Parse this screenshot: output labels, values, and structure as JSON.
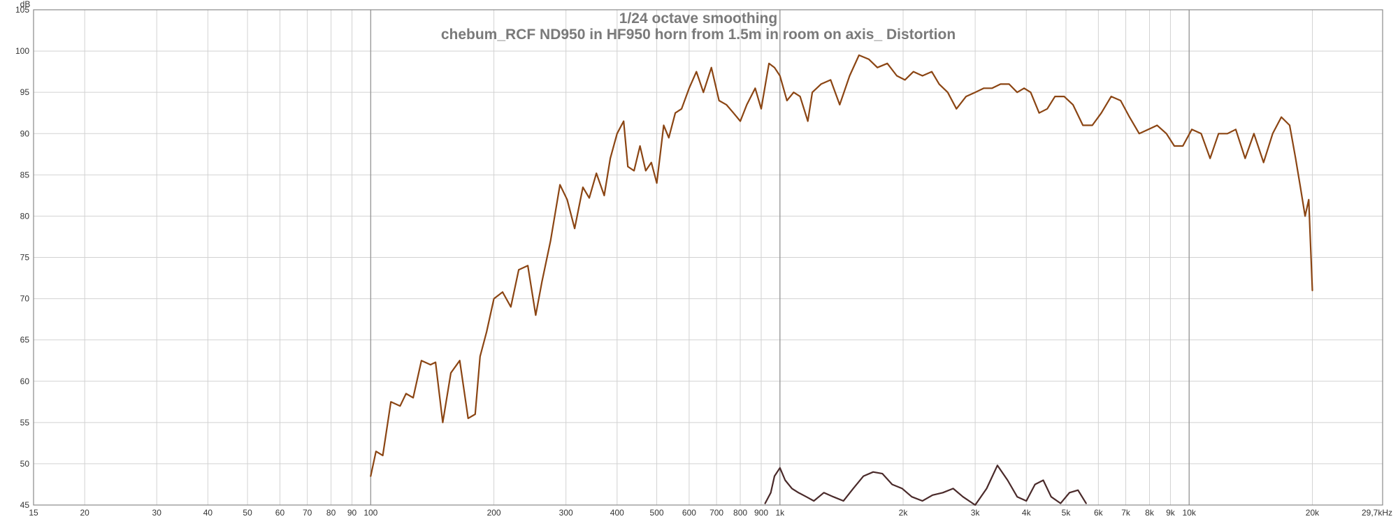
{
  "chart_data": {
    "type": "line",
    "title": "1/24 octave smoothing",
    "subtitle": "chebum_RCF ND950 in HF950 horn from 1.5m in room on axis_ Distortion",
    "ylabel": "dB",
    "xlabel_end": "29,7kHz",
    "x_scale": "log",
    "xlim": [
      15,
      29700
    ],
    "ylim": [
      45,
      105
    ],
    "grid": true,
    "y_ticks": [
      45,
      50,
      55,
      60,
      65,
      70,
      75,
      80,
      85,
      90,
      95,
      100,
      105
    ],
    "x_ticks": [
      {
        "v": 15,
        "label": "15"
      },
      {
        "v": 20,
        "label": "20"
      },
      {
        "v": 30,
        "label": "30"
      },
      {
        "v": 40,
        "label": "40"
      },
      {
        "v": 50,
        "label": "50"
      },
      {
        "v": 60,
        "label": "60"
      },
      {
        "v": 70,
        "label": "70"
      },
      {
        "v": 80,
        "label": "80"
      },
      {
        "v": 90,
        "label": "90"
      },
      {
        "v": 100,
        "label": "100"
      },
      {
        "v": 200,
        "label": "200"
      },
      {
        "v": 300,
        "label": "300"
      },
      {
        "v": 400,
        "label": "400"
      },
      {
        "v": 500,
        "label": "500"
      },
      {
        "v": 600,
        "label": "600"
      },
      {
        "v": 700,
        "label": "700"
      },
      {
        "v": 800,
        "label": "800"
      },
      {
        "v": 900,
        "label": "900"
      },
      {
        "v": 1000,
        "label": "1k"
      },
      {
        "v": 2000,
        "label": "2k"
      },
      {
        "v": 3000,
        "label": "3k"
      },
      {
        "v": 4000,
        "label": "4k"
      },
      {
        "v": 5000,
        "label": "5k"
      },
      {
        "v": 6000,
        "label": "6k"
      },
      {
        "v": 7000,
        "label": "7k"
      },
      {
        "v": 8000,
        "label": "8k"
      },
      {
        "v": 9000,
        "label": "9k"
      },
      {
        "v": 10000,
        "label": "10k"
      },
      {
        "v": 20000,
        "label": "20k"
      }
    ],
    "decade_lines": [
      100,
      1000,
      10000
    ],
    "series": [
      {
        "color": "#8b4513",
        "points": [
          [
            100,
            48.5
          ],
          [
            103,
            51.5
          ],
          [
            107,
            51
          ],
          [
            112,
            57.5
          ],
          [
            118,
            57
          ],
          [
            122,
            58.5
          ],
          [
            127,
            58
          ],
          [
            133,
            62.5
          ],
          [
            140,
            62
          ],
          [
            144,
            62.3
          ],
          [
            150,
            55
          ],
          [
            157,
            61
          ],
          [
            165,
            62.5
          ],
          [
            173,
            55.5
          ],
          [
            180,
            56
          ],
          [
            185,
            63
          ],
          [
            192,
            66
          ],
          [
            200,
            70
          ],
          [
            210,
            70.8
          ],
          [
            220,
            69
          ],
          [
            230,
            73.5
          ],
          [
            242,
            74
          ],
          [
            253,
            68
          ],
          [
            262,
            72
          ],
          [
            275,
            77
          ],
          [
            290,
            83.8
          ],
          [
            302,
            82
          ],
          [
            315,
            78.5
          ],
          [
            330,
            83.5
          ],
          [
            342,
            82.2
          ],
          [
            356,
            85.2
          ],
          [
            372,
            82.5
          ],
          [
            385,
            87
          ],
          [
            400,
            90
          ],
          [
            415,
            91.5
          ],
          [
            425,
            86
          ],
          [
            440,
            85.5
          ],
          [
            455,
            88.5
          ],
          [
            470,
            85.5
          ],
          [
            485,
            86.5
          ],
          [
            500,
            84
          ],
          [
            520,
            91
          ],
          [
            535,
            89.5
          ],
          [
            555,
            92.5
          ],
          [
            575,
            93
          ],
          [
            600,
            95.5
          ],
          [
            625,
            97.5
          ],
          [
            650,
            95
          ],
          [
            680,
            98
          ],
          [
            710,
            94
          ],
          [
            740,
            93.5
          ],
          [
            770,
            92.5
          ],
          [
            800,
            91.5
          ],
          [
            830,
            93.5
          ],
          [
            870,
            95.5
          ],
          [
            900,
            93
          ],
          [
            940,
            98.5
          ],
          [
            970,
            98
          ],
          [
            1000,
            97
          ],
          [
            1040,
            94
          ],
          [
            1080,
            95
          ],
          [
            1120,
            94.5
          ],
          [
            1170,
            91.5
          ],
          [
            1200,
            95
          ],
          [
            1260,
            96
          ],
          [
            1330,
            96.5
          ],
          [
            1400,
            93.5
          ],
          [
            1480,
            97
          ],
          [
            1560,
            99.5
          ],
          [
            1650,
            99
          ],
          [
            1730,
            98
          ],
          [
            1830,
            98.5
          ],
          [
            1930,
            97
          ],
          [
            2020,
            96.5
          ],
          [
            2120,
            97.5
          ],
          [
            2230,
            97
          ],
          [
            2350,
            97.5
          ],
          [
            2450,
            96
          ],
          [
            2570,
            95
          ],
          [
            2700,
            93
          ],
          [
            2850,
            94.5
          ],
          [
            3000,
            95
          ],
          [
            3150,
            95.5
          ],
          [
            3300,
            95.5
          ],
          [
            3460,
            96
          ],
          [
            3630,
            96
          ],
          [
            3800,
            95
          ],
          [
            3950,
            95.5
          ],
          [
            4100,
            95
          ],
          [
            4300,
            92.5
          ],
          [
            4500,
            93
          ],
          [
            4700,
            94.5
          ],
          [
            4950,
            94.5
          ],
          [
            5200,
            93.5
          ],
          [
            5500,
            91
          ],
          [
            5800,
            91
          ],
          [
            6100,
            92.5
          ],
          [
            6450,
            94.5
          ],
          [
            6800,
            94
          ],
          [
            7150,
            92
          ],
          [
            7550,
            90
          ],
          [
            7950,
            90.5
          ],
          [
            8350,
            91
          ],
          [
            8800,
            90
          ],
          [
            9200,
            88.5
          ],
          [
            9650,
            88.5
          ],
          [
            10150,
            90.5
          ],
          [
            10700,
            90
          ],
          [
            11250,
            87
          ],
          [
            11800,
            90
          ],
          [
            12400,
            90
          ],
          [
            13000,
            90.5
          ],
          [
            13700,
            87
          ],
          [
            14400,
            90
          ],
          [
            15200,
            86.5
          ],
          [
            16000,
            90
          ],
          [
            16800,
            92
          ],
          [
            17600,
            91
          ],
          [
            18200,
            87
          ],
          [
            18700,
            83.5
          ],
          [
            19200,
            80
          ],
          [
            19600,
            82
          ],
          [
            20000,
            71
          ]
        ]
      },
      {
        "color": "#4a2a2a",
        "points": [
          [
            920,
            45.2
          ],
          [
            950,
            46.5
          ],
          [
            970,
            48.5
          ],
          [
            1000,
            49.5
          ],
          [
            1030,
            48
          ],
          [
            1070,
            47
          ],
          [
            1110,
            46.5
          ],
          [
            1160,
            46
          ],
          [
            1210,
            45.5
          ],
          [
            1280,
            46.5
          ],
          [
            1350,
            46
          ],
          [
            1430,
            45.5
          ],
          [
            1510,
            47
          ],
          [
            1600,
            48.5
          ],
          [
            1690,
            49
          ],
          [
            1780,
            48.8
          ],
          [
            1880,
            47.5
          ],
          [
            1990,
            47
          ],
          [
            2100,
            46
          ],
          [
            2230,
            45.5
          ],
          [
            2360,
            46.2
          ],
          [
            2500,
            46.5
          ],
          [
            2650,
            47
          ],
          [
            2800,
            46
          ],
          [
            3000,
            45
          ],
          [
            3200,
            47
          ],
          [
            3400,
            49.8
          ],
          [
            3600,
            48
          ],
          [
            3800,
            46
          ],
          [
            4000,
            45.5
          ],
          [
            4200,
            47.5
          ],
          [
            4400,
            48
          ],
          [
            4600,
            46
          ],
          [
            4850,
            45.2
          ],
          [
            5100,
            46.5
          ],
          [
            5350,
            46.8
          ],
          [
            5600,
            45.2
          ]
        ]
      }
    ]
  }
}
